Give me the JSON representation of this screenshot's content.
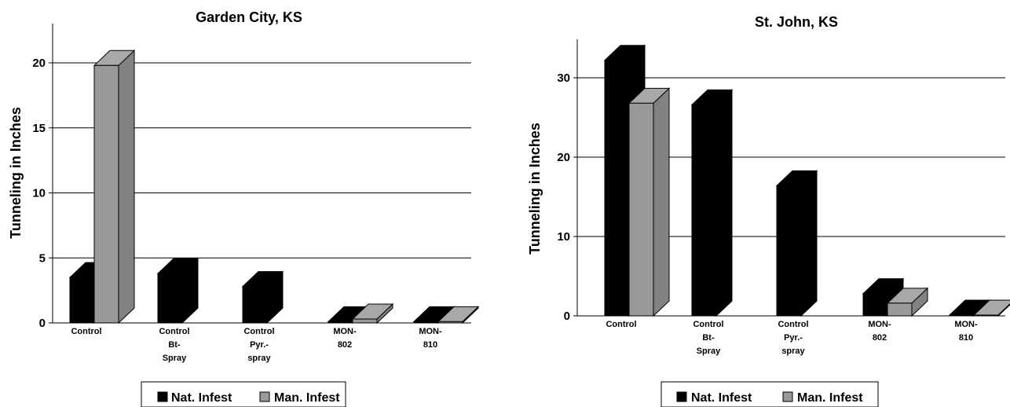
{
  "chart_data": [
    {
      "type": "bar",
      "title": "Garden City, KS",
      "ylabel": "Tunneling in Inches",
      "xlabel": "",
      "ylim": [
        0,
        23
      ],
      "yticks": [
        "0",
        "5",
        "10",
        "15",
        "20"
      ],
      "categories": [
        [
          "Control"
        ],
        [
          "Control",
          "Bt-",
          "Spray"
        ],
        [
          "Control",
          "Pyr.-",
          "spray"
        ],
        [
          "MON-",
          "802"
        ],
        [
          "MON-",
          "810"
        ]
      ],
      "series": [
        {
          "name": "Nat. Infest",
          "values": [
            3.5,
            3.8,
            2.8,
            0.1,
            0.1
          ],
          "color": "#000000"
        },
        {
          "name": "Man. Infest",
          "values": [
            19.8,
            null,
            null,
            0.3,
            0.1
          ],
          "color": "#999999"
        }
      ],
      "legend": "bottom",
      "grid": true
    },
    {
      "type": "bar",
      "title": "St. John, KS",
      "ylabel": "Tunneling in Inches",
      "xlabel": "",
      "ylim": [
        0,
        35
      ],
      "yticks": [
        "0",
        "10",
        "20",
        "30"
      ],
      "categories": [
        [
          "Control"
        ],
        [
          "Control",
          "Bt-",
          "Spray"
        ],
        [
          "Control",
          "Pyr.-",
          "spray"
        ],
        [
          "MON-",
          "802"
        ],
        [
          "MON-",
          "810"
        ]
      ],
      "series": [
        {
          "name": "Nat. Infest",
          "values": [
            32.2,
            26.6,
            16.4,
            2.8,
            0.1
          ],
          "color": "#000000"
        },
        {
          "name": "Man. Infest",
          "values": [
            26.8,
            null,
            null,
            1.6,
            0.1
          ],
          "color": "#999999"
        }
      ],
      "legend": "bottom",
      "grid": true
    }
  ]
}
